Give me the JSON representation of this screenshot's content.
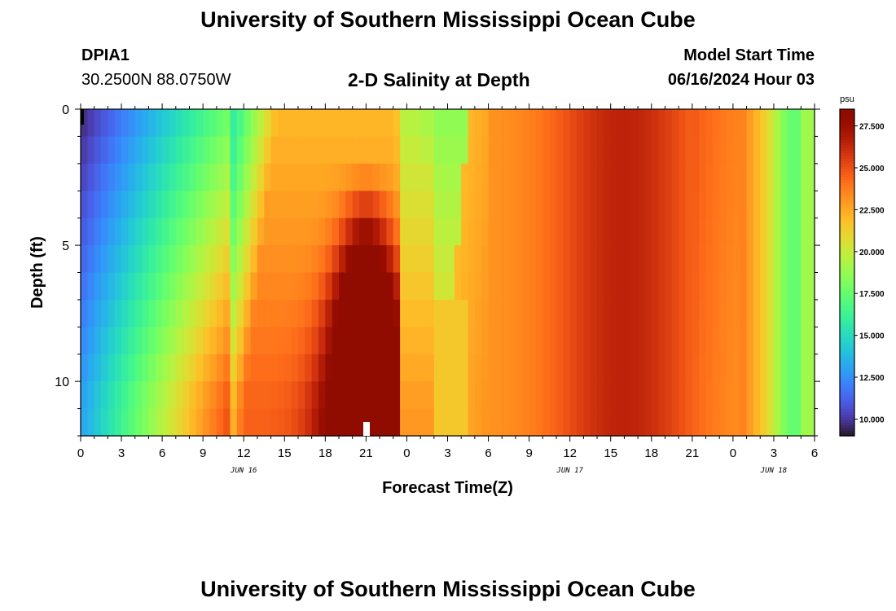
{
  "header": {
    "title": "University of Southern Mississippi Ocean Cube",
    "station_id": "DPIA1",
    "station_coords": "30.2500N  88.0750W",
    "plot_title": "2-D Salinity at Depth",
    "model_start_label": "Model Start Time",
    "model_start_value": "06/16/2024 Hour 03"
  },
  "footer": {
    "title": "University of Southern Mississippi Ocean Cube"
  },
  "chart_data": {
    "type": "heatmap",
    "title": "2-D Salinity at Depth",
    "xlabel": "Forecast Time(Z)",
    "ylabel": "Depth (ft)",
    "x_ticks": [
      "0",
      "3",
      "6",
      "9",
      "12",
      "15",
      "18",
      "21",
      "0",
      "3",
      "6",
      "9",
      "12",
      "15",
      "18",
      "21",
      "0",
      "3",
      "6"
    ],
    "x_range_hours": [
      0,
      54
    ],
    "date_labels": [
      {
        "label": "JUN 16",
        "hour": 12
      },
      {
        "label": "JUN 17",
        "hour": 36
      },
      {
        "label": "JUN 18",
        "hour": 51
      }
    ],
    "y_ticks": [
      "0",
      "5",
      "10"
    ],
    "y_range": [
      0,
      12
    ],
    "y_inverted": true,
    "depths_ft": [
      0,
      1,
      2,
      3,
      4,
      5,
      6,
      7,
      8,
      9,
      10,
      11
    ],
    "hours": [
      0,
      1,
      2,
      3,
      4,
      5,
      6,
      7,
      8,
      9,
      10,
      11,
      12,
      13,
      14,
      15,
      16,
      17,
      18,
      19,
      20,
      21,
      22,
      23,
      24,
      25,
      26,
      27,
      28,
      29,
      30,
      31,
      32,
      33,
      34,
      35,
      36,
      37,
      38,
      39,
      40,
      41,
      42,
      43,
      44,
      45,
      46,
      47,
      48,
      49,
      50,
      51,
      52,
      53,
      54
    ],
    "colorbar": {
      "unit": "psu",
      "min": 9,
      "max": 28.5,
      "ticks": [
        "10.000",
        "12.500",
        "15.000",
        "17.500",
        "20.000",
        "22.500",
        "25.000",
        "27.500"
      ],
      "colormap": "turbo"
    },
    "profile": {
      "note_unused": ""
    }
  }
}
